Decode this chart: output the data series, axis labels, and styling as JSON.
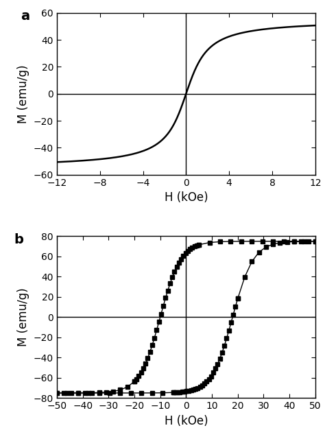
{
  "panel_a": {
    "label": "a",
    "xlabel": "H (kOe)",
    "ylabel": "M (emu/g)",
    "xlim": [
      -12,
      12
    ],
    "ylim": [
      -60,
      60
    ],
    "xticks": [
      -12,
      -8,
      -4,
      0,
      4,
      8,
      12
    ],
    "yticks": [
      -60,
      -40,
      -20,
      0,
      20,
      40,
      60
    ],
    "Ms": 55,
    "arctan_scale": 1.5
  },
  "panel_b": {
    "label": "b",
    "xlabel": "H (kOe)",
    "ylabel": "M (emu/g)",
    "xlim": [
      -50,
      50
    ],
    "ylim": [
      -80,
      80
    ],
    "xticks": [
      -50,
      -40,
      -30,
      -20,
      -10,
      0,
      10,
      20,
      30,
      40,
      50
    ],
    "yticks": [
      -80,
      -60,
      -40,
      -20,
      0,
      20,
      40,
      60,
      80
    ],
    "Ms": 75,
    "Hc_upper": -10,
    "Hc_lower": 18,
    "tanh_scale": 8,
    "n_points_dense": 40,
    "n_points_sparse": 20
  },
  "line_color": "#000000",
  "bg_color": "#ffffff",
  "label_fontsize": 12,
  "tick_fontsize": 10,
  "panel_label_fontsize": 14,
  "marker_size": 4,
  "linewidth_a": 1.8,
  "linewidth_b": 1.0
}
